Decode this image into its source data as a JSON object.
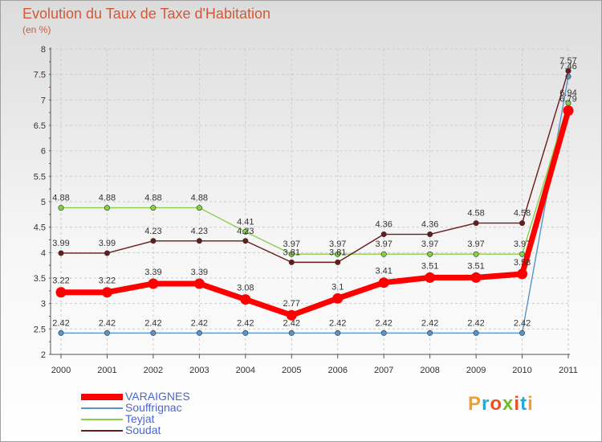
{
  "header": {
    "title": "Evolution du Taux de Taxe d'Habitation",
    "subtitle": "(en %)"
  },
  "logo": {
    "text": "Proxiti",
    "colors": [
      "#f0a030",
      "#2aa7d8",
      "#e8502a",
      "#6cbf2a",
      "#e8502a",
      "#2aa7d8",
      "#f0a030"
    ]
  },
  "chart_data": {
    "type": "line",
    "x": [
      "2000",
      "2001",
      "2002",
      "2003",
      "2004",
      "2005",
      "2006",
      "2007",
      "2008",
      "2009",
      "2010",
      "2011"
    ],
    "ylim": [
      2,
      8
    ],
    "yticks": [
      "2",
      "2.5",
      "3",
      "3.5",
      "4",
      "4.5",
      "5",
      "5.5",
      "6",
      "6.5",
      "7",
      "7.5",
      "8"
    ],
    "grid": true,
    "legend_position": "bottom-left",
    "series": [
      {
        "name": "VARAIGNES",
        "color": "#ff0000",
        "values": [
          3.22,
          3.22,
          3.39,
          3.39,
          3.08,
          2.77,
          3.1,
          3.41,
          3.51,
          3.51,
          3.58,
          6.79
        ],
        "labels": [
          "3.22",
          "3.22",
          "3.39",
          "3.39",
          "3.08",
          "2.77",
          "3.1",
          "3.41",
          "3.51",
          "3.51",
          "3.58",
          "6.79"
        ]
      },
      {
        "name": "Souffrignac",
        "color": "#5a93c8",
        "values": [
          2.42,
          2.42,
          2.42,
          2.42,
          2.42,
          2.42,
          2.42,
          2.42,
          2.42,
          2.42,
          2.42,
          7.46
        ],
        "labels": [
          "2.42",
          "2.42",
          "2.42",
          "2.42",
          "2.42",
          "2.42",
          "2.42",
          "2.42",
          "2.42",
          "2.42",
          "2.42",
          "7.46"
        ]
      },
      {
        "name": "Teyjat",
        "color": "#88d048",
        "values": [
          4.88,
          4.88,
          4.88,
          4.88,
          4.41,
          3.97,
          3.97,
          3.97,
          3.97,
          3.97,
          3.97,
          6.94
        ],
        "labels": [
          "4.88",
          "4.88",
          "4.88",
          "4.88",
          "4.41",
          "3.97",
          "3.97",
          "3.97",
          "3.97",
          "3.97",
          "3.97",
          "6.94"
        ]
      },
      {
        "name": "Soudat",
        "color": "#6b1a1a",
        "values": [
          3.99,
          3.99,
          4.23,
          4.23,
          4.23,
          3.81,
          3.81,
          4.36,
          4.36,
          4.58,
          4.58,
          7.57
        ],
        "labels": [
          "3.99",
          "3.99",
          "4.23",
          "4.23",
          "4.23",
          "3.81",
          "3.81",
          "4.36",
          "4.36",
          "4.58",
          "4.58",
          "7.57"
        ]
      }
    ]
  }
}
